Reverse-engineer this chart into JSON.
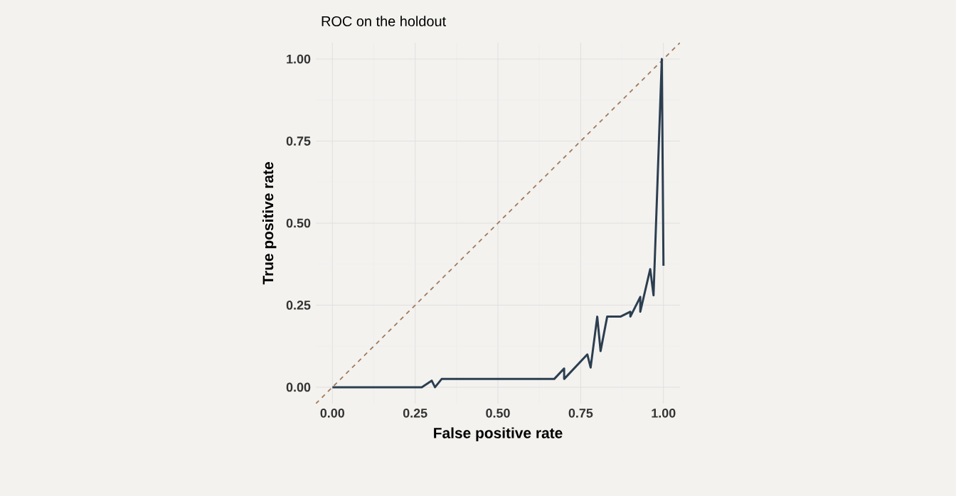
{
  "chart_data": {
    "type": "line",
    "title": "ROC on the holdout",
    "xlabel": "False positive rate",
    "ylabel": "True positive rate",
    "xlim": [
      -0.05,
      1.05
    ],
    "ylim": [
      -0.05,
      1.05
    ],
    "xticks": [
      {
        "value": 0,
        "label": "0.00"
      },
      {
        "value": 0.25,
        "label": "0.25"
      },
      {
        "value": 0.5,
        "label": "0.50"
      },
      {
        "value": 0.75,
        "label": "0.75"
      },
      {
        "value": 1,
        "label": "1.00"
      }
    ],
    "yticks": [
      {
        "value": 0,
        "label": "0.00"
      },
      {
        "value": 0.25,
        "label": "0.25"
      },
      {
        "value": 0.5,
        "label": "0.50"
      },
      {
        "value": 0.75,
        "label": "0.75"
      },
      {
        "value": 1,
        "label": "1.00"
      }
    ],
    "grid": true,
    "marker": "none",
    "series": [
      {
        "color": "#a07a5c",
        "line_style": "dashed",
        "x": [
          -0.05,
          1.05
        ],
        "values": [
          -0.05,
          1.05
        ]
      },
      {
        "color": "#2c3e50",
        "line_style": "solid",
        "x": [
          0,
          0.27,
          0.3,
          0.31,
          0.33,
          0.67,
          0.7,
          0.7,
          0.77,
          0.78,
          0.8,
          0.81,
          0.83,
          0.87,
          0.9,
          0.9,
          0.93,
          0.93,
          0.96,
          0.97,
          0.995,
          1.0
        ],
        "values": [
          0,
          0,
          0.02,
          0,
          0.025,
          0.025,
          0.057,
          0.025,
          0.1,
          0.06,
          0.215,
          0.11,
          0.215,
          0.215,
          0.23,
          0.215,
          0.275,
          0.23,
          0.36,
          0.28,
          1.0,
          0.37
        ]
      }
    ]
  }
}
